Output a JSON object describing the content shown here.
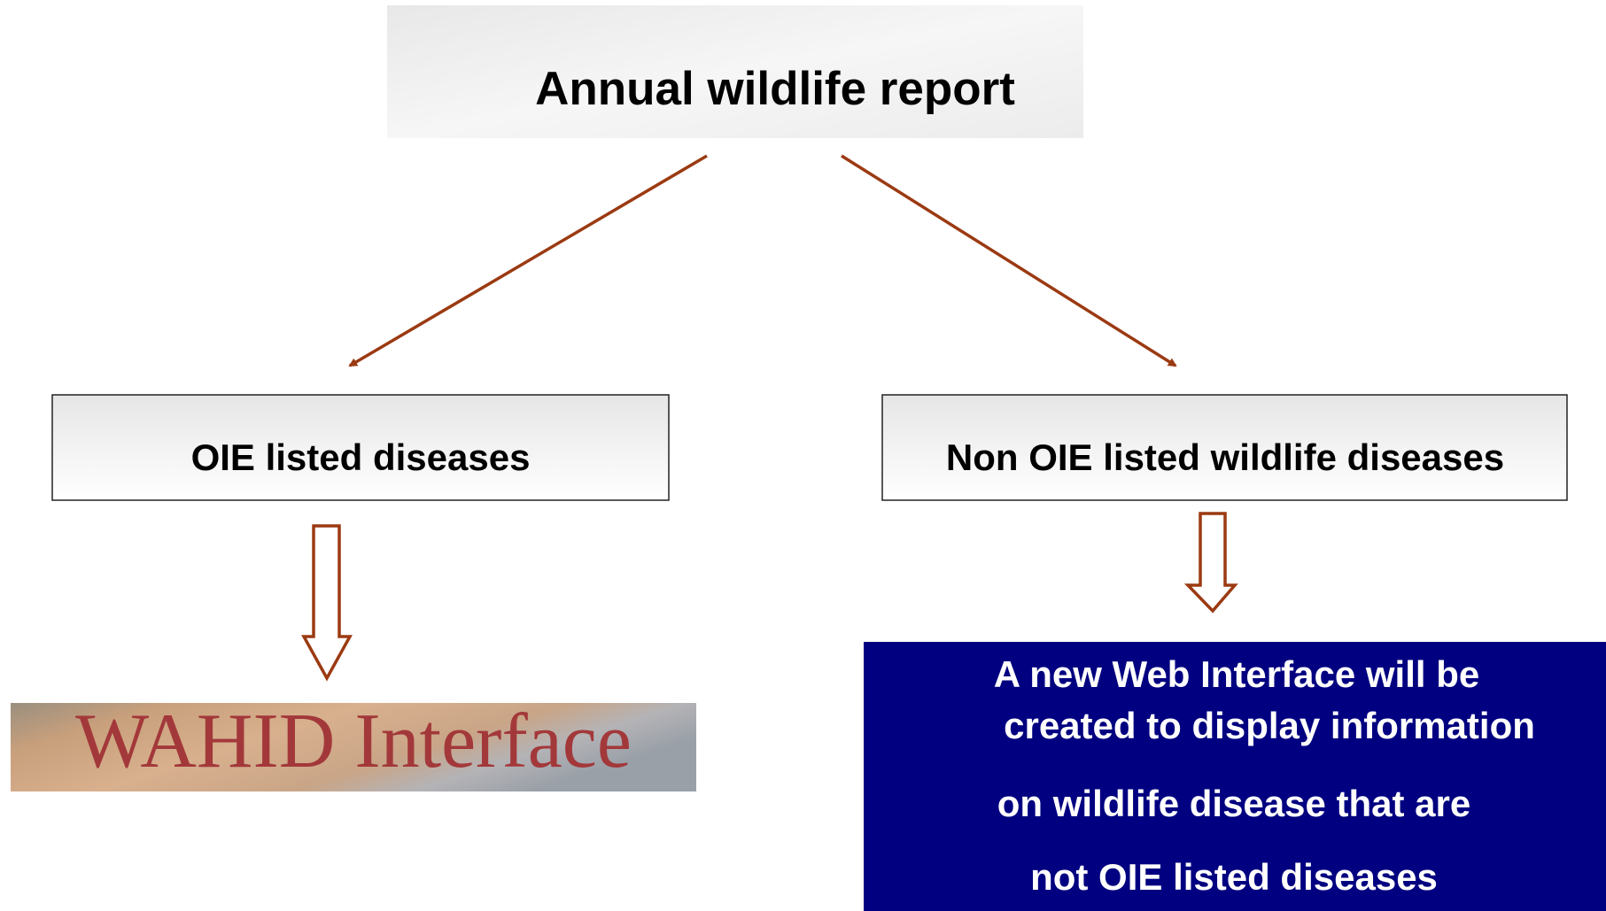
{
  "title": "Annual wildlife report",
  "branches": [
    {
      "label": "OIE listed diseases",
      "result": "WAHID Interface"
    },
    {
      "label": "Non OIE listed wildlife diseases",
      "result_lines": [
        "A new Web Interface will be",
        "created to display information",
        "on wildlife disease that are",
        "not OIE listed diseases"
      ]
    }
  ]
}
